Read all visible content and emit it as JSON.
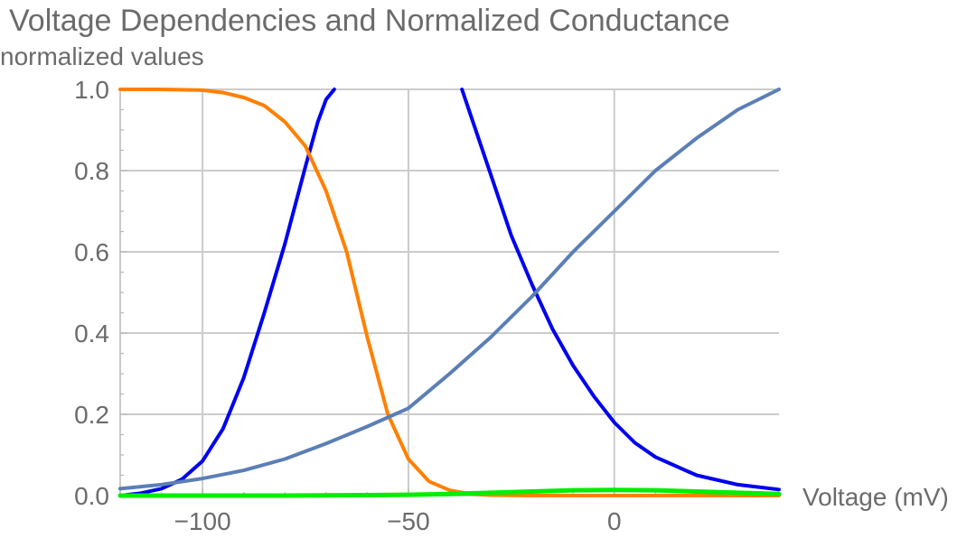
{
  "chart_data": {
    "type": "line",
    "title": "Voltage Dependencies and Normalized Conductance",
    "xlabel": "Voltage (mV)",
    "ylabel": "normalized values",
    "xlim": [
      -120,
      40
    ],
    "ylim": [
      0,
      1
    ],
    "x_ticks": [
      -100,
      -50,
      0
    ],
    "x_tick_labels": [
      "−100",
      "−50",
      "0"
    ],
    "y_ticks": [
      0,
      0.2,
      0.4,
      0.6,
      0.8,
      1.0
    ],
    "y_tick_labels": [
      "0.0",
      "0.2",
      "0.4",
      "0.6",
      "0.8",
      "1.0"
    ],
    "grid": true,
    "legend": "none",
    "series": [
      {
        "color": "#0000f0",
        "x": [
          -120,
          -115,
          -110,
          -105,
          -100,
          -95,
          -90,
          -85,
          -80,
          -75,
          -72,
          -70,
          -68
        ],
        "y": [
          0.0,
          0.006,
          0.017,
          0.04,
          0.085,
          0.165,
          0.29,
          0.45,
          0.62,
          0.81,
          0.92,
          0.975,
          1.0
        ]
      },
      {
        "color": "#ff8000",
        "x": [
          -120,
          -110,
          -100,
          -95,
          -90,
          -85,
          -80,
          -75,
          -70,
          -65,
          -60,
          -55,
          -50,
          -45,
          -40,
          -35,
          -30,
          -20,
          -10,
          0,
          10,
          20,
          30,
          40
        ],
        "y": [
          1.0,
          1.0,
          0.998,
          0.992,
          0.98,
          0.96,
          0.92,
          0.86,
          0.75,
          0.6,
          0.39,
          0.2,
          0.09,
          0.035,
          0.013,
          0.004,
          0.001,
          0.0,
          0.0,
          0.0,
          0.0,
          0.0,
          0.0,
          0.0
        ]
      },
      {
        "color": "#0000f0",
        "x": [
          -37,
          -35,
          -30,
          -25,
          -20,
          -15,
          -10,
          -5,
          0,
          5,
          10,
          20,
          30,
          40
        ],
        "y": [
          1.0,
          0.94,
          0.79,
          0.64,
          0.52,
          0.41,
          0.32,
          0.245,
          0.18,
          0.13,
          0.095,
          0.05,
          0.027,
          0.015
        ]
      },
      {
        "color": "#5b7fb5",
        "x": [
          -120,
          -110,
          -100,
          -90,
          -80,
          -70,
          -60,
          -50,
          -40,
          -30,
          -20,
          -10,
          0,
          10,
          20,
          30,
          40
        ],
        "y": [
          0.017,
          0.027,
          0.042,
          0.062,
          0.09,
          0.128,
          0.17,
          0.215,
          0.3,
          0.39,
          0.49,
          0.6,
          0.7,
          0.8,
          0.88,
          0.95,
          1.0
        ]
      },
      {
        "color": "#00ee00",
        "x": [
          -120,
          -100,
          -80,
          -60,
          -50,
          -40,
          -30,
          -20,
          -10,
          0,
          10,
          20,
          30,
          40
        ],
        "y": [
          0.0,
          0.0,
          0.0,
          0.001,
          0.002,
          0.004,
          0.007,
          0.01,
          0.013,
          0.014,
          0.013,
          0.01,
          0.007,
          0.004
        ]
      }
    ]
  }
}
